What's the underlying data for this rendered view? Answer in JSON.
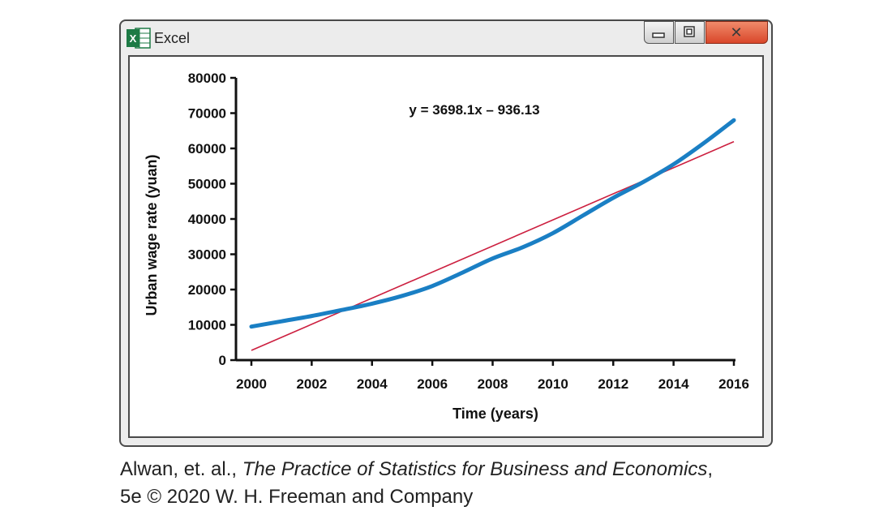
{
  "window": {
    "app_name": "Excel",
    "app_icon_letter": "X",
    "close_glyph": "✕"
  },
  "chart_data": {
    "type": "line",
    "xlabel": "Time (years)",
    "ylabel": "Urban wage rate (yuan)",
    "xlim": [
      2000,
      2016
    ],
    "ylim": [
      0,
      80000
    ],
    "x_ticks": [
      "2000",
      "2002",
      "2004",
      "2006",
      "2008",
      "2010",
      "2012",
      "2014",
      "2016"
    ],
    "y_ticks": [
      "0",
      "10000",
      "20000",
      "30000",
      "40000",
      "50000",
      "60000",
      "70000",
      "80000"
    ],
    "annotation": "y = 3698.1x – 936.13",
    "grid": false,
    "legend": "none",
    "series": [
      {
        "color": "#1a7fc4",
        "x": [
          2000,
          2001,
          2002,
          2003,
          2004,
          2005,
          2006,
          2007,
          2008,
          2009,
          2010,
          2011,
          2012,
          2013,
          2014,
          2015,
          2016
        ],
        "values": [
          9500,
          11000,
          12500,
          14200,
          16000,
          18200,
          21000,
          24800,
          28800,
          32000,
          36000,
          41000,
          46000,
          50500,
          55500,
          61500,
          68000
        ]
      },
      {
        "color": "#cc1f3f",
        "trendline": true,
        "slope_per_year": 3698.1,
        "x": [
          2000,
          2016
        ],
        "values": [
          2762,
          61932
        ]
      }
    ]
  },
  "caption": {
    "authors": "Alwan, et. al., ",
    "book": "The Practice of Statistics for Business and Economics",
    "after_book": ",",
    "line2": "5e © 2020 W. H. Freeman and Company"
  }
}
